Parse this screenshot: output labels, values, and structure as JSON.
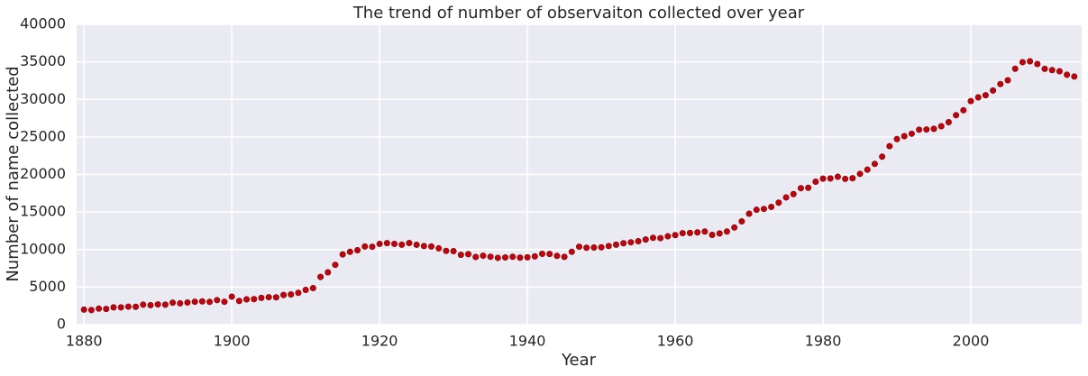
{
  "chart_data": {
    "type": "scatter",
    "title": "The trend of number of observaiton collected over year",
    "x_label": "Year",
    "y_label": "Number of name collected",
    "x": [
      1880,
      1881,
      1882,
      1883,
      1884,
      1885,
      1886,
      1887,
      1888,
      1889,
      1890,
      1891,
      1892,
      1893,
      1894,
      1895,
      1896,
      1897,
      1898,
      1899,
      1900,
      1901,
      1902,
      1903,
      1904,
      1905,
      1906,
      1907,
      1908,
      1909,
      1910,
      1911,
      1912,
      1913,
      1914,
      1915,
      1916,
      1917,
      1918,
      1919,
      1920,
      1921,
      1922,
      1923,
      1924,
      1925,
      1926,
      1927,
      1928,
      1929,
      1930,
      1931,
      1932,
      1933,
      1934,
      1935,
      1936,
      1937,
      1938,
      1939,
      1940,
      1941,
      1942,
      1943,
      1944,
      1945,
      1946,
      1947,
      1948,
      1949,
      1950,
      1951,
      1952,
      1953,
      1954,
      1955,
      1956,
      1957,
      1958,
      1959,
      1960,
      1961,
      1962,
      1963,
      1964,
      1965,
      1966,
      1967,
      1968,
      1969,
      1970,
      1971,
      1972,
      1973,
      1974,
      1975,
      1976,
      1977,
      1978,
      1979,
      1980,
      1981,
      1982,
      1983,
      1984,
      1985,
      1986,
      1987,
      1988,
      1989,
      1990,
      1991,
      1992,
      1993,
      1994,
      1995,
      1996,
      1997,
      1998,
      1999,
      2000,
      2001,
      2002,
      2003,
      2004,
      2005,
      2006,
      2007,
      2008,
      2009,
      2010,
      2011,
      2012,
      2013,
      2014
    ],
    "values": [
      2000,
      1935,
      2127,
      2084,
      2297,
      2294,
      2392,
      2373,
      2651,
      2590,
      2695,
      2660,
      2921,
      2831,
      2941,
      3049,
      3091,
      3028,
      3264,
      3042,
      3730,
      3153,
      3362,
      3389,
      3561,
      3655,
      3633,
      3948,
      4018,
      4227,
      4629,
      4867,
      6351,
      6968,
      7965,
      9357,
      9696,
      9913,
      10398,
      10369,
      10756,
      10857,
      10756,
      10643,
      10869,
      10638,
      10458,
      10406,
      10159,
      9820,
      9791,
      9298,
      9381,
      9013,
      9180,
      9037,
      8894,
      8946,
      9032,
      8918,
      8961,
      9085,
      9425,
      9408,
      9152,
      9025,
      9705,
      10371,
      10241,
      10269,
      10303,
      10462,
      10646,
      10837,
      10968,
      11115,
      11340,
      11564,
      11522,
      11767,
      11921,
      12182,
      12209,
      12282,
      12397,
      11952,
      12151,
      12397,
      12936,
      13749,
      14779,
      15295,
      15412,
      15682,
      16249,
      16944,
      17391,
      18175,
      18231,
      19038,
      19440,
      19475,
      19694,
      19407,
      19506,
      20080,
      20641,
      21406,
      22367,
      23775,
      24716,
      25109,
      25427,
      25966,
      25997,
      26080,
      26423,
      26970,
      27902,
      28552,
      29772,
      30274,
      30560,
      31185,
      32048,
      32549,
      34088,
      34961,
      35079,
      34711,
      34073,
      33908,
      33747,
      33282,
      33043
    ],
    "color": "#c8000a",
    "xlim": [
      1879,
      2015
    ],
    "xticks": [
      1880,
      1900,
      1920,
      1940,
      1960,
      1980,
      2000
    ],
    "ylim": [
      0,
      40000
    ],
    "yticks": [
      0,
      5000,
      10000,
      15000,
      20000,
      25000,
      30000,
      35000,
      40000
    ],
    "grid": true
  }
}
